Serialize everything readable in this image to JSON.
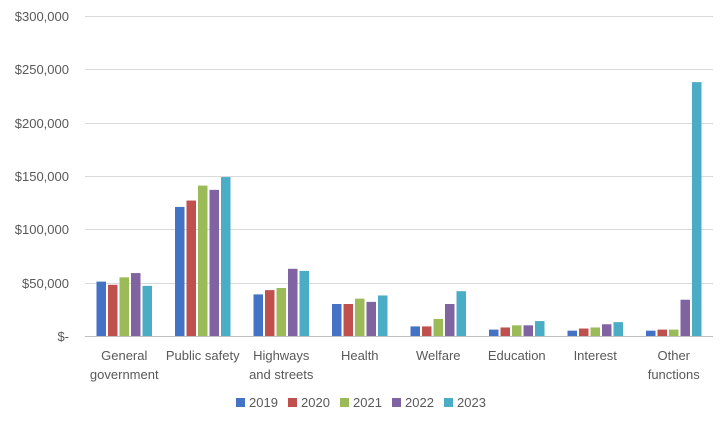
{
  "chart_data": {
    "type": "bar",
    "title": "",
    "xlabel": "",
    "ylabel": "",
    "ylim": [
      0,
      300000
    ],
    "y_tick_values": [
      0,
      50000,
      100000,
      150000,
      200000,
      250000,
      300000
    ],
    "y_tick_labels": [
      "$-",
      "$50,000",
      "$100,000",
      "$150,000",
      "$200,000",
      "$250,000",
      "$300,000"
    ],
    "grid": true,
    "legend_position": "bottom",
    "categories": [
      [
        "General",
        "government"
      ],
      [
        "Public safety"
      ],
      [
        "Highways",
        "and streets"
      ],
      [
        "Health"
      ],
      [
        "Welfare"
      ],
      [
        "Education"
      ],
      [
        "Interest"
      ],
      [
        "Other",
        "functions"
      ]
    ],
    "series": [
      {
        "name": "2019",
        "color": "#4472C4",
        "values": [
          51000,
          121000,
          39000,
          30000,
          9000,
          6000,
          5000,
          5000
        ]
      },
      {
        "name": "2020",
        "color": "#C0504D",
        "values": [
          48000,
          127000,
          43000,
          30000,
          9000,
          8000,
          7000,
          6000
        ]
      },
      {
        "name": "2021",
        "color": "#9BBB59",
        "values": [
          55000,
          141000,
          45000,
          35000,
          16000,
          10000,
          8000,
          6000
        ]
      },
      {
        "name": "2022",
        "color": "#8064A2",
        "values": [
          59000,
          137000,
          63000,
          32000,
          30000,
          10000,
          11000,
          34000
        ]
      },
      {
        "name": "2023",
        "color": "#4BACC6",
        "values": [
          47000,
          149000,
          61000,
          38000,
          42000,
          14000,
          13000,
          238000
        ]
      }
    ]
  }
}
